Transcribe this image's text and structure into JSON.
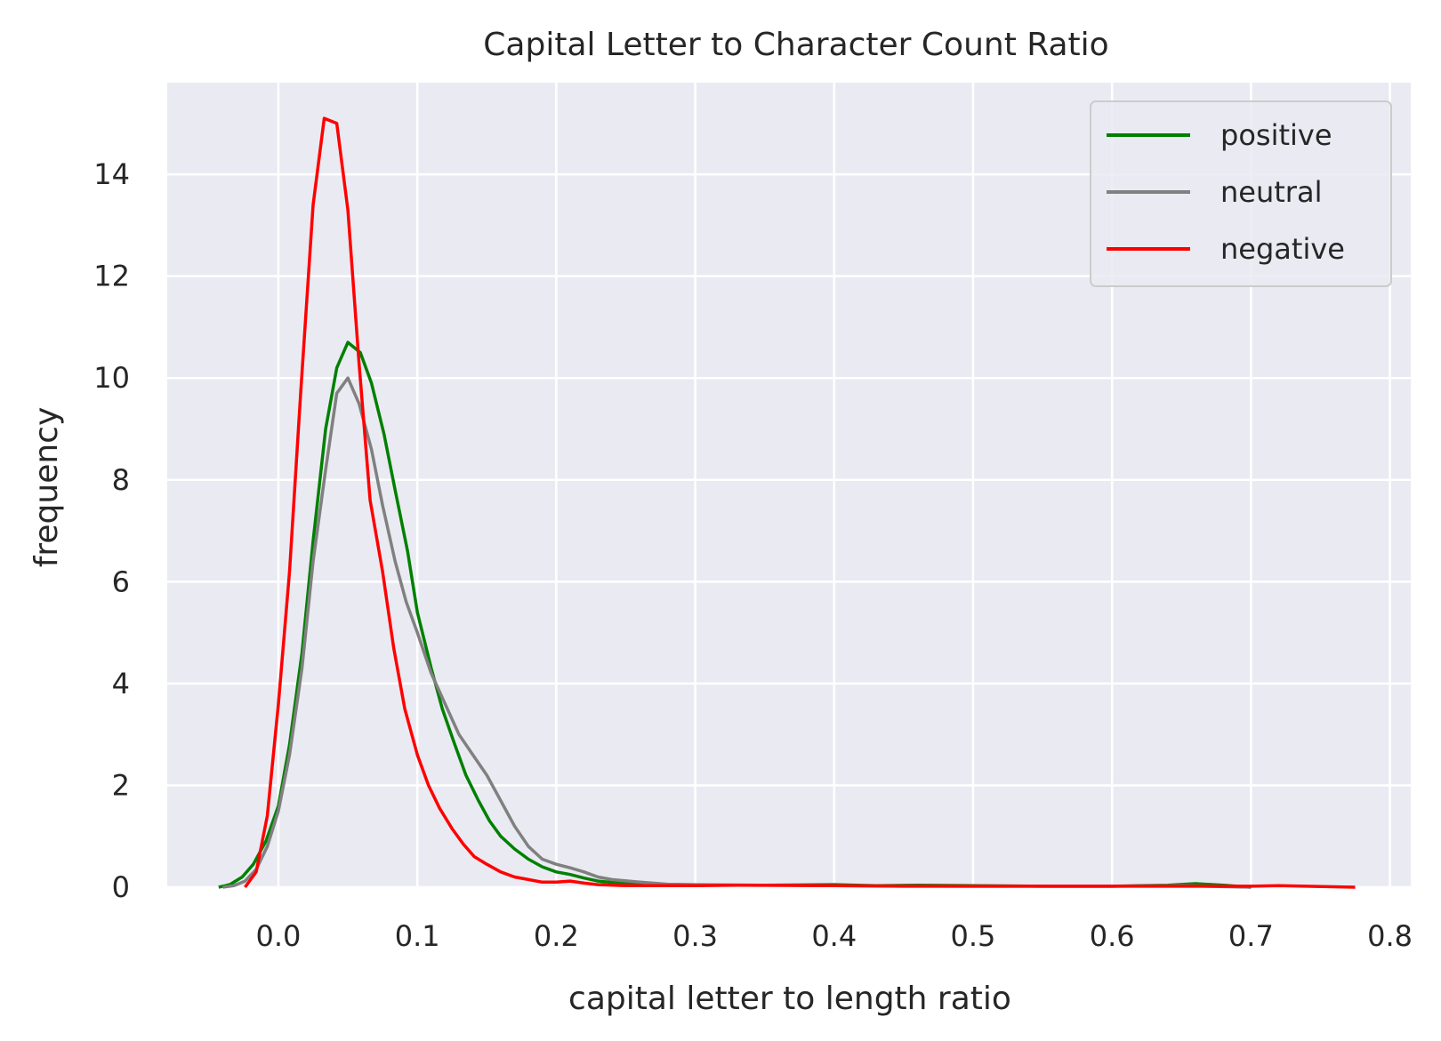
{
  "chart_data": {
    "type": "line",
    "title": "Capital Letter to Character Count Ratio",
    "xlabel": "capital letter to length ratio",
    "ylabel": "frequency",
    "xlim": [
      -0.08,
      0.815
    ],
    "ylim": [
      0,
      15.8
    ],
    "xticks": [
      0.0,
      0.1,
      0.2,
      0.3,
      0.4,
      0.5,
      0.6,
      0.7,
      0.8
    ],
    "xtick_labels": [
      "0.0",
      "0.1",
      "0.2",
      "0.3",
      "0.4",
      "0.5",
      "0.6",
      "0.7",
      "0.8"
    ],
    "yticks": [
      0,
      2,
      4,
      6,
      8,
      10,
      12,
      14
    ],
    "ytick_labels": [
      "0",
      "2",
      "4",
      "6",
      "8",
      "10",
      "12",
      "14"
    ],
    "grid": true,
    "background": "#eaeaf2",
    "legend_position": "top-right",
    "series": [
      {
        "name": "positive",
        "color": "#008000",
        "x": [
          -0.043,
          -0.035,
          -0.026,
          -0.018,
          -0.009,
          0.0,
          0.008,
          0.017,
          0.025,
          0.034,
          0.042,
          0.05,
          0.059,
          0.067,
          0.076,
          0.084,
          0.093,
          0.1,
          0.11,
          0.118,
          0.127,
          0.135,
          0.144,
          0.152,
          0.16,
          0.17,
          0.18,
          0.19,
          0.2,
          0.21,
          0.22,
          0.23,
          0.25,
          0.27,
          0.3,
          0.35,
          0.4,
          0.43,
          0.46,
          0.5,
          0.55,
          0.6,
          0.64,
          0.66,
          0.68,
          0.7
        ],
        "y": [
          0.0,
          0.05,
          0.2,
          0.45,
          0.9,
          1.6,
          2.8,
          4.6,
          6.8,
          9.0,
          10.2,
          10.7,
          10.5,
          9.9,
          8.9,
          7.8,
          6.6,
          5.4,
          4.3,
          3.5,
          2.8,
          2.2,
          1.7,
          1.3,
          1.0,
          0.75,
          0.55,
          0.4,
          0.3,
          0.25,
          0.18,
          0.12,
          0.07,
          0.05,
          0.04,
          0.04,
          0.05,
          0.03,
          0.04,
          0.03,
          0.02,
          0.02,
          0.04,
          0.07,
          0.04,
          0.0
        ]
      },
      {
        "name": "neutral",
        "color": "#808080",
        "x": [
          -0.04,
          -0.032,
          -0.024,
          -0.016,
          -0.008,
          0.0,
          0.008,
          0.017,
          0.025,
          0.034,
          0.042,
          0.05,
          0.058,
          0.067,
          0.075,
          0.084,
          0.092,
          0.1,
          0.11,
          0.12,
          0.13,
          0.14,
          0.15,
          0.16,
          0.17,
          0.18,
          0.19,
          0.2,
          0.21,
          0.22,
          0.23,
          0.24,
          0.26,
          0.28,
          0.3,
          0.35,
          0.4,
          0.5,
          0.6,
          0.65,
          0.7
        ],
        "y": [
          0.0,
          0.03,
          0.12,
          0.35,
          0.8,
          1.5,
          2.6,
          4.3,
          6.4,
          8.2,
          9.7,
          10.0,
          9.5,
          8.6,
          7.5,
          6.4,
          5.6,
          5.0,
          4.2,
          3.6,
          3.0,
          2.6,
          2.2,
          1.7,
          1.2,
          0.8,
          0.55,
          0.45,
          0.38,
          0.3,
          0.2,
          0.15,
          0.1,
          0.06,
          0.05,
          0.04,
          0.03,
          0.02,
          0.02,
          0.03,
          0.0
        ]
      },
      {
        "name": "negative",
        "color": "#ff0000",
        "x": [
          -0.024,
          -0.016,
          -0.008,
          0.0,
          0.008,
          0.016,
          0.025,
          0.033,
          0.042,
          0.05,
          0.058,
          0.066,
          0.075,
          0.083,
          0.091,
          0.1,
          0.108,
          0.116,
          0.125,
          0.133,
          0.141,
          0.15,
          0.16,
          0.17,
          0.18,
          0.19,
          0.2,
          0.21,
          0.22,
          0.23,
          0.25,
          0.3,
          0.33,
          0.4,
          0.45,
          0.5,
          0.6,
          0.7,
          0.72,
          0.775
        ],
        "y": [
          0.0,
          0.3,
          1.4,
          3.6,
          6.2,
          9.7,
          13.4,
          15.1,
          15.0,
          13.3,
          10.3,
          7.6,
          6.2,
          4.7,
          3.5,
          2.6,
          2.0,
          1.55,
          1.15,
          0.85,
          0.6,
          0.45,
          0.3,
          0.2,
          0.15,
          0.1,
          0.1,
          0.12,
          0.08,
          0.05,
          0.03,
          0.03,
          0.04,
          0.03,
          0.02,
          0.02,
          0.02,
          0.02,
          0.03,
          0.0
        ]
      }
    ]
  }
}
